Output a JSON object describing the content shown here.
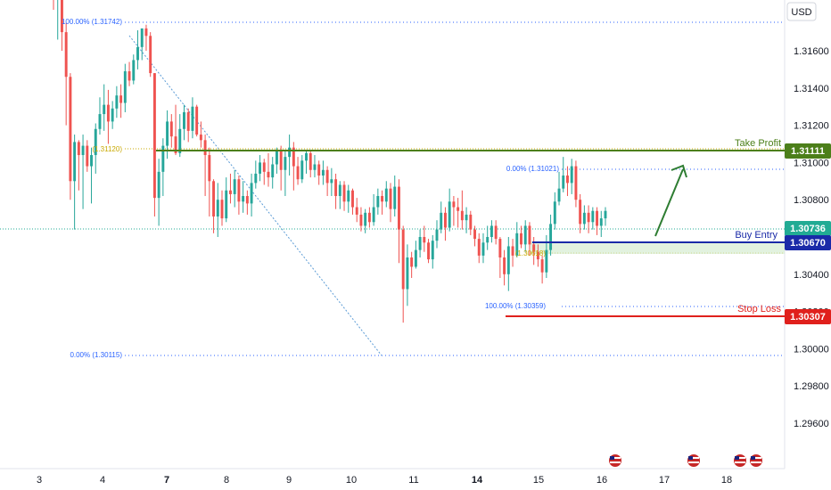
{
  "chart_data": {
    "type": "candlestick",
    "currency_label": "USD",
    "y_ticks": [
      "1.31600",
      "1.31400",
      "1.31200",
      "1.31000",
      "1.30800",
      "1.30600",
      "1.30400",
      "1.30200",
      "1.30000",
      "1.29800",
      "1.29600"
    ],
    "x_ticks": [
      {
        "label": "3",
        "bold": false
      },
      {
        "label": "4",
        "bold": false
      },
      {
        "label": "7",
        "bold": true
      },
      {
        "label": "8",
        "bold": false
      },
      {
        "label": "9",
        "bold": false
      },
      {
        "label": "10",
        "bold": false
      },
      {
        "label": "11",
        "bold": false
      },
      {
        "label": "14",
        "bold": true
      },
      {
        "label": "15",
        "bold": false
      },
      {
        "label": "16",
        "bold": false
      },
      {
        "label": "17",
        "bold": false
      },
      {
        "label": "18",
        "bold": false
      }
    ],
    "levels": [
      {
        "name": "Take Profit",
        "value": 1.31111,
        "tag": "1.31111",
        "color": "#4c7f1a"
      },
      {
        "name": "Buy Entry",
        "value": 1.3067,
        "tag": "1.30670",
        "color": "#1a2aa8"
      },
      {
        "name": "Stop Loss",
        "value": 1.30307,
        "tag": "1.30307",
        "color": "#e0201c"
      }
    ],
    "current_price": {
      "value": 1.30736,
      "tag": "1.30736",
      "color": "#22ab94"
    },
    "fib_labels": [
      {
        "text": "100.00% (1.31742)",
        "value": 1.31742
      },
      {
        "text": "(1.31120)",
        "value": 1.3112
      },
      {
        "text": "0.00% (1.30115)",
        "value": 1.30115
      },
      {
        "text": "0.00% (1.31021)",
        "value": 1.31021
      },
      {
        "text": "(1.30618)",
        "value": 1.30618
      },
      {
        "text": "100.00% (1.30359)",
        "value": 1.30359
      }
    ],
    "candles": [
      [
        1.3198,
        1.3188,
        1.3192,
        1.3182
      ],
      [
        1.3188,
        1.3193,
        1.3196,
        1.3166
      ],
      [
        1.3193,
        1.317,
        1.3196,
        1.316
      ],
      [
        1.317,
        1.3146,
        1.3175,
        1.312
      ],
      [
        1.3146,
        1.309,
        1.3148,
        1.308
      ],
      [
        1.309,
        1.3111,
        1.3115,
        1.3064
      ],
      [
        1.3111,
        1.3104,
        1.3112,
        1.3085
      ],
      [
        1.3104,
        1.3109,
        1.3115,
        1.3075
      ],
      [
        1.3109,
        1.3098,
        1.3112,
        1.3095
      ],
      [
        1.3098,
        1.3104,
        1.3108,
        1.3078
      ],
      [
        1.3104,
        1.3118,
        1.3121,
        1.3094
      ],
      [
        1.3118,
        1.3126,
        1.3135,
        1.3115
      ],
      [
        1.3126,
        1.3131,
        1.3142,
        1.3117
      ],
      [
        1.3131,
        1.3122,
        1.3139,
        1.311
      ],
      [
        1.3122,
        1.3129,
        1.3133,
        1.3118
      ],
      [
        1.3129,
        1.3136,
        1.3141,
        1.3124
      ],
      [
        1.3136,
        1.3132,
        1.3142,
        1.3124
      ],
      [
        1.3132,
        1.3149,
        1.3153,
        1.3127
      ],
      [
        1.3149,
        1.3144,
        1.3154,
        1.3141
      ],
      [
        1.3144,
        1.3155,
        1.3158,
        1.3142
      ],
      [
        1.3155,
        1.3162,
        1.3171,
        1.315
      ],
      [
        1.3162,
        1.3172,
        1.3172,
        1.3155
      ],
      [
        1.3172,
        1.3168,
        1.3174,
        1.316
      ],
      [
        1.3168,
        1.3148,
        1.317,
        1.3146
      ],
      [
        1.3148,
        1.3081,
        1.3148,
        1.3071
      ],
      [
        1.3081,
        1.3095,
        1.3102,
        1.3066
      ],
      [
        1.3095,
        1.3109,
        1.3113,
        1.3082
      ],
      [
        1.3109,
        1.3122,
        1.3128,
        1.3102
      ],
      [
        1.3122,
        1.3114,
        1.3126,
        1.3108
      ],
      [
        1.3114,
        1.3105,
        1.3131,
        1.3104
      ],
      [
        1.3105,
        1.3118,
        1.3126,
        1.3103
      ],
      [
        1.3118,
        1.3127,
        1.3131,
        1.3112
      ],
      [
        1.3127,
        1.3117,
        1.3129,
        1.3111
      ],
      [
        1.3117,
        1.313,
        1.3135,
        1.3113
      ],
      [
        1.313,
        1.3115,
        1.3131,
        1.3114
      ],
      [
        1.3115,
        1.3112,
        1.3122,
        1.3108
      ],
      [
        1.3112,
        1.3104,
        1.3115,
        1.3082
      ],
      [
        1.3104,
        1.309,
        1.3108,
        1.3071
      ],
      [
        1.309,
        1.3071,
        1.3091,
        1.3062
      ],
      [
        1.3071,
        1.308,
        1.3089,
        1.306
      ],
      [
        1.308,
        1.307,
        1.3085,
        1.3066
      ],
      [
        1.307,
        1.3085,
        1.3092,
        1.3068
      ],
      [
        1.3085,
        1.3083,
        1.3094,
        1.3078
      ],
      [
        1.3083,
        1.3091,
        1.3096,
        1.3076
      ],
      [
        1.3091,
        1.3079,
        1.3093,
        1.3072
      ],
      [
        1.3079,
        1.3082,
        1.309,
        1.3073
      ],
      [
        1.3082,
        1.3078,
        1.3085,
        1.3072
      ],
      [
        1.3078,
        1.3089,
        1.3094,
        1.3071
      ],
      [
        1.3089,
        1.3094,
        1.3101,
        1.3086
      ],
      [
        1.3094,
        1.31,
        1.3104,
        1.309
      ],
      [
        1.31,
        1.3095,
        1.3102,
        1.3088
      ],
      [
        1.3095,
        1.3092,
        1.3105,
        1.3087
      ],
      [
        1.3092,
        1.3099,
        1.3103,
        1.3086
      ],
      [
        1.3099,
        1.3106,
        1.3108,
        1.3094
      ],
      [
        1.3106,
        1.3096,
        1.3109,
        1.3085
      ],
      [
        1.3096,
        1.3103,
        1.3106,
        1.3082
      ],
      [
        1.3103,
        1.3108,
        1.3115,
        1.3093
      ],
      [
        1.3108,
        1.3098,
        1.3111,
        1.3085
      ],
      [
        1.3098,
        1.3091,
        1.3103,
        1.3088
      ],
      [
        1.3091,
        1.3101,
        1.3104,
        1.3089
      ],
      [
        1.3101,
        1.3105,
        1.3106,
        1.3094
      ],
      [
        1.3105,
        1.3096,
        1.3106,
        1.3092
      ],
      [
        1.3096,
        1.3099,
        1.3104,
        1.3092
      ],
      [
        1.3099,
        1.3093,
        1.3101,
        1.3088
      ],
      [
        1.3093,
        1.3096,
        1.3101,
        1.3088
      ],
      [
        1.3096,
        1.3089,
        1.3098,
        1.3082
      ],
      [
        1.3089,
        1.3091,
        1.3097,
        1.3082
      ],
      [
        1.3091,
        1.3082,
        1.3094,
        1.3075
      ],
      [
        1.3082,
        1.3088,
        1.309,
        1.3075
      ],
      [
        1.3088,
        1.3079,
        1.309,
        1.3074
      ],
      [
        1.3079,
        1.3085,
        1.3088,
        1.3073
      ],
      [
        1.3085,
        1.3076,
        1.3086,
        1.3072
      ],
      [
        1.3076,
        1.3072,
        1.3081,
        1.3068
      ],
      [
        1.3072,
        1.3066,
        1.3076,
        1.3063
      ],
      [
        1.3066,
        1.3073,
        1.3075,
        1.3062
      ],
      [
        1.3073,
        1.3068,
        1.3076,
        1.3065
      ],
      [
        1.3068,
        1.3076,
        1.3083,
        1.3066
      ],
      [
        1.3076,
        1.3082,
        1.3086,
        1.3072
      ],
      [
        1.3082,
        1.3079,
        1.3085,
        1.3072
      ],
      [
        1.3079,
        1.3086,
        1.309,
        1.3076
      ],
      [
        1.3086,
        1.3075,
        1.3089,
        1.3068
      ],
      [
        1.3075,
        1.3087,
        1.3093,
        1.3071
      ],
      [
        1.3087,
        1.3064,
        1.3091,
        1.3046
      ],
      [
        1.3064,
        1.3032,
        1.3066,
        1.3014
      ],
      [
        1.3032,
        1.3049,
        1.3056,
        1.3023
      ],
      [
        1.3049,
        1.3044,
        1.3052,
        1.3038
      ],
      [
        1.3044,
        1.3053,
        1.3058,
        1.3043
      ],
      [
        1.3053,
        1.306,
        1.3064,
        1.3049
      ],
      [
        1.306,
        1.3057,
        1.3066,
        1.3052
      ],
      [
        1.3057,
        1.3048,
        1.3059,
        1.3046
      ],
      [
        1.3048,
        1.3058,
        1.3061,
        1.3043
      ],
      [
        1.3058,
        1.3064,
        1.3069,
        1.3054
      ],
      [
        1.3064,
        1.3073,
        1.3079,
        1.3062
      ],
      [
        1.3073,
        1.3065,
        1.3076,
        1.3058
      ],
      [
        1.3065,
        1.3079,
        1.3086,
        1.3063
      ],
      [
        1.3079,
        1.3076,
        1.3082,
        1.3066
      ],
      [
        1.3076,
        1.3074,
        1.3081,
        1.3065
      ],
      [
        1.3074,
        1.3069,
        1.3085,
        1.3064
      ],
      [
        1.3069,
        1.3072,
        1.3076,
        1.3062
      ],
      [
        1.3072,
        1.3064,
        1.3074,
        1.3061
      ],
      [
        1.3064,
        1.3059,
        1.3066,
        1.3055
      ],
      [
        1.3059,
        1.305,
        1.3062,
        1.3046
      ],
      [
        1.305,
        1.3057,
        1.3062,
        1.3046
      ],
      [
        1.3057,
        1.306,
        1.3066,
        1.3053
      ],
      [
        1.306,
        1.3066,
        1.3069,
        1.3057
      ],
      [
        1.3066,
        1.3059,
        1.3069,
        1.3056
      ],
      [
        1.3059,
        1.3049,
        1.306,
        1.3038
      ],
      [
        1.3049,
        1.304,
        1.3053,
        1.3034
      ],
      [
        1.304,
        1.3055,
        1.306,
        1.3031
      ],
      [
        1.3055,
        1.305,
        1.3059,
        1.3044
      ],
      [
        1.305,
        1.3062,
        1.3068,
        1.3049
      ],
      [
        1.3062,
        1.3056,
        1.3066,
        1.3054
      ],
      [
        1.3056,
        1.3066,
        1.3069,
        1.3052
      ],
      [
        1.3066,
        1.3056,
        1.3068,
        1.305
      ],
      [
        1.3056,
        1.3052,
        1.306,
        1.3045
      ],
      [
        1.3052,
        1.3048,
        1.3056,
        1.3044
      ],
      [
        1.3048,
        1.3041,
        1.305,
        1.3035
      ],
      [
        1.3041,
        1.3053,
        1.3061,
        1.3038
      ],
      [
        1.3053,
        1.3067,
        1.3072,
        1.305
      ],
      [
        1.3067,
        1.3079,
        1.3084,
        1.3064
      ],
      [
        1.3079,
        1.3086,
        1.3095,
        1.3077
      ],
      [
        1.3086,
        1.3093,
        1.3103,
        1.3084
      ],
      [
        1.3093,
        1.3089,
        1.3098,
        1.3082
      ],
      [
        1.3089,
        1.3098,
        1.3102,
        1.3083
      ],
      [
        1.3098,
        1.308,
        1.3101,
        1.3076
      ],
      [
        1.308,
        1.3067,
        1.3083,
        1.3062
      ],
      [
        1.3067,
        1.3073,
        1.3077,
        1.3064
      ],
      [
        1.3073,
        1.3068,
        1.3077,
        1.3062
      ],
      [
        1.3068,
        1.3074,
        1.3076,
        1.3064
      ],
      [
        1.3074,
        1.3066,
        1.3076,
        1.3061
      ],
      [
        1.3066,
        1.307,
        1.3074,
        1.306
      ],
      [
        1.307,
        1.3074,
        1.3076,
        1.3066
      ]
    ]
  }
}
